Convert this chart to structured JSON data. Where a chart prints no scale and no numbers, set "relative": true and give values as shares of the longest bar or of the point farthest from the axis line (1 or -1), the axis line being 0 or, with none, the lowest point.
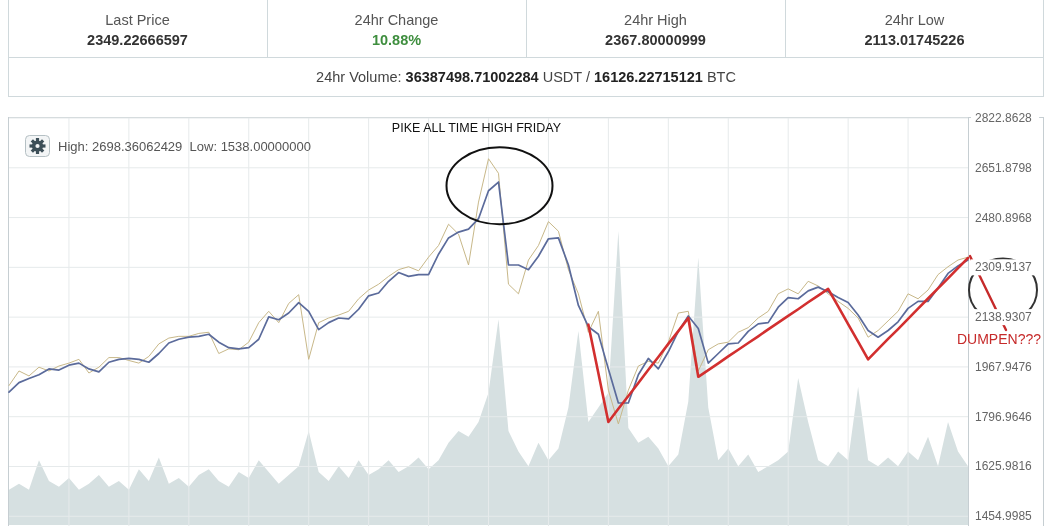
{
  "chart_data": [
    {
      "type": "other",
      "categories": [
        "Last Price",
        "24hr Change",
        "24hr High",
        "24hr Low"
      ],
      "value_labels": [
        "2349.22666597",
        "10.88%",
        "2367.80000999",
        "2113.01745226"
      ],
      "annotations": [
        "24hr Volume: 36387498.71002284 USDT / 16126.22715121 BTC"
      ]
    },
    {
      "type": "line",
      "categories": [
        null,
        null,
        null,
        null,
        null,
        null,
        null,
        null,
        null,
        null,
        null,
        null,
        null,
        null,
        null,
        null,
        null,
        null,
        null,
        null,
        null,
        null,
        null,
        null,
        null,
        null,
        null,
        null,
        null,
        null,
        null,
        null,
        null,
        null,
        null,
        null,
        null,
        null,
        null,
        null,
        null,
        null,
        null,
        null,
        null,
        null,
        null,
        null,
        null,
        null,
        null,
        null,
        null,
        null,
        null,
        null,
        null,
        null,
        null,
        null,
        null,
        null,
        null,
        null,
        null,
        null,
        null,
        null,
        null,
        null,
        null,
        null,
        null,
        null,
        null,
        null,
        null,
        null,
        null,
        null,
        null,
        null,
        null,
        null,
        null,
        null,
        null,
        null,
        null,
        null,
        null,
        null,
        null,
        null,
        null,
        null,
        null
      ],
      "series": [
        {
          "color": "#c8b889",
          "values": [
            1904,
            1954,
            1937,
            1967,
            1954,
            1971,
            1981,
            1994,
            1947,
            1967,
            2000,
            2000,
            1990,
            1981,
            2004,
            2047,
            2067,
            2073,
            2073,
            2083,
            2087,
            2014,
            2030,
            2027,
            2053,
            2120,
            2159,
            2120,
            2186,
            2216,
            1994,
            2120,
            2136,
            2146,
            2159,
            2202,
            2232,
            2252,
            2279,
            2302,
            2312,
            2298,
            2345,
            2385,
            2458,
            2424,
            2318,
            2534,
            2683,
            2633,
            2252,
            2219,
            2335,
            2385,
            2467,
            2434,
            2302,
            2219,
            2087,
            2159,
            1888,
            1772,
            1888,
            1971,
            1987,
            1981,
            2053,
            2153,
            2159,
            1954,
            2027,
            2047,
            2053,
            2087,
            2103,
            2136,
            2159,
            2219,
            2236,
            2219,
            2262,
            2246,
            2219,
            2193,
            2169,
            2136,
            2070,
            2093,
            2126,
            2159,
            2219,
            2202,
            2232,
            2285,
            2312,
            2335,
            2345
          ]
        },
        {
          "color": "#5b6b9b",
          "values": [
            1881,
            1914,
            1928,
            1941,
            1961,
            1957,
            1974,
            1981,
            1961,
            1951,
            1984,
            1994,
            1997,
            1994,
            1984,
            2014,
            2050,
            2063,
            2070,
            2073,
            2080,
            2053,
            2034,
            2030,
            2034,
            2063,
            2140,
            2130,
            2153,
            2189,
            2159,
            2096,
            2120,
            2136,
            2133,
            2166,
            2212,
            2222,
            2262,
            2292,
            2279,
            2285,
            2285,
            2355,
            2411,
            2431,
            2441,
            2477,
            2573,
            2603,
            2318,
            2318,
            2302,
            2348,
            2408,
            2411,
            2318,
            2179,
            2106,
            2080,
            1961,
            1844,
            1844,
            1941,
            1997,
            1961,
            2020,
            2090,
            2143,
            2100,
            1981,
            2014,
            2047,
            2050,
            2090,
            2116,
            2120,
            2173,
            2206,
            2202,
            2229,
            2242,
            2226,
            2206,
            2189,
            2146,
            2093,
            2070,
            2093,
            2123,
            2169,
            2193,
            2193,
            2239,
            2289,
            2315,
            2335
          ]
        },
        {
          "color": "#d22f2f",
          "values": [
            null,
            null,
            null,
            null,
            null,
            null,
            null,
            null,
            null,
            null,
            null,
            null,
            null,
            null,
            null,
            null,
            null,
            null,
            null,
            null,
            null,
            null,
            null,
            null,
            null,
            null,
            null,
            null,
            null,
            null,
            null,
            null,
            null,
            null,
            null,
            null,
            null,
            null,
            null,
            null,
            null,
            null,
            null,
            null,
            null,
            null,
            null,
            null,
            null,
            null,
            null,
            null,
            null,
            null,
            null,
            null,
            null,
            null,
            2113,
            1946,
            1779,
            1824,
            1868,
            1913,
            1958,
            2002,
            2047,
            2091,
            2136,
            1934,
            1957,
            1980,
            2004,
            2027,
            2050,
            2073,
            2097,
            2120,
            2143,
            2166,
            2190,
            2213,
            2236,
            2176,
            2115,
            2055,
            1994,
            2029,
            2064,
            2098,
            2133,
            2168,
            2203,
            2238,
            2272,
            2307,
            2342
          ]
        }
      ],
      "ylim": [
        1425,
        2822.8628
      ],
      "yticks": [
        2822.8628,
        2651.8798,
        2480.8968,
        2309.9137,
        2138.9307,
        1967.9476,
        1796.9646,
        1625.9816,
        1454.9985
      ],
      "grid": true,
      "tick_labels": "y",
      "annotations": [
        "High: 2698.36062429  Low: 1538.00000000",
        "PIKE ALL TIME HIGH FRIDAY",
        "DUMPEN???"
      ]
    },
    {
      "type": "area",
      "relative": true,
      "categories": [
        null,
        null,
        null,
        null,
        null,
        null,
        null,
        null,
        null,
        null,
        null,
        null,
        null,
        null,
        null,
        null,
        null,
        null,
        null,
        null,
        null,
        null,
        null,
        null,
        null,
        null,
        null,
        null,
        null,
        null,
        null,
        null,
        null,
        null,
        null,
        null,
        null,
        null,
        null,
        null,
        null,
        null,
        null,
        null,
        null,
        null,
        null,
        null,
        null,
        null,
        null,
        null,
        null,
        null,
        null,
        null,
        null,
        null,
        null,
        null,
        null,
        null,
        null,
        null,
        null,
        null,
        null,
        null,
        null,
        null,
        null,
        null,
        null,
        null,
        null,
        null,
        null,
        null,
        null,
        null,
        null,
        null,
        null,
        null,
        null,
        null,
        null,
        null,
        null,
        null,
        null,
        null,
        null,
        null,
        null,
        null,
        null
      ],
      "series": [
        {
          "color": "#d6e0e1",
          "values": [
            0.12,
            0.14,
            0.12,
            0.22,
            0.15,
            0.13,
            0.16,
            0.12,
            0.14,
            0.17,
            0.13,
            0.15,
            0.12,
            0.19,
            0.15,
            0.23,
            0.14,
            0.16,
            0.13,
            0.17,
            0.19,
            0.15,
            0.13,
            0.18,
            0.16,
            0.22,
            0.18,
            0.14,
            0.17,
            0.2,
            0.32,
            0.18,
            0.15,
            0.2,
            0.16,
            0.22,
            0.17,
            0.19,
            0.22,
            0.18,
            0.2,
            0.23,
            0.19,
            0.22,
            0.28,
            0.32,
            0.3,
            0.35,
            0.45,
            0.7,
            0.32,
            0.25,
            0.2,
            0.28,
            0.22,
            0.26,
            0.4,
            0.66,
            0.35,
            0.4,
            0.45,
            1,
            0.33,
            0.28,
            0.3,
            0.26,
            0.2,
            0.24,
            0.42,
            0.91,
            0.4,
            0.22,
            0.26,
            0.2,
            0.24,
            0.18,
            0.2,
            0.22,
            0.25,
            0.5,
            0.35,
            0.22,
            0.2,
            0.25,
            0.22,
            0.47,
            0.22,
            0.2,
            0.23,
            0.2,
            0.25,
            0.22,
            0.3,
            0.2,
            0.35,
            0.25,
            0.2
          ]
        }
      ],
      "tick_labels": false
    }
  ]
}
